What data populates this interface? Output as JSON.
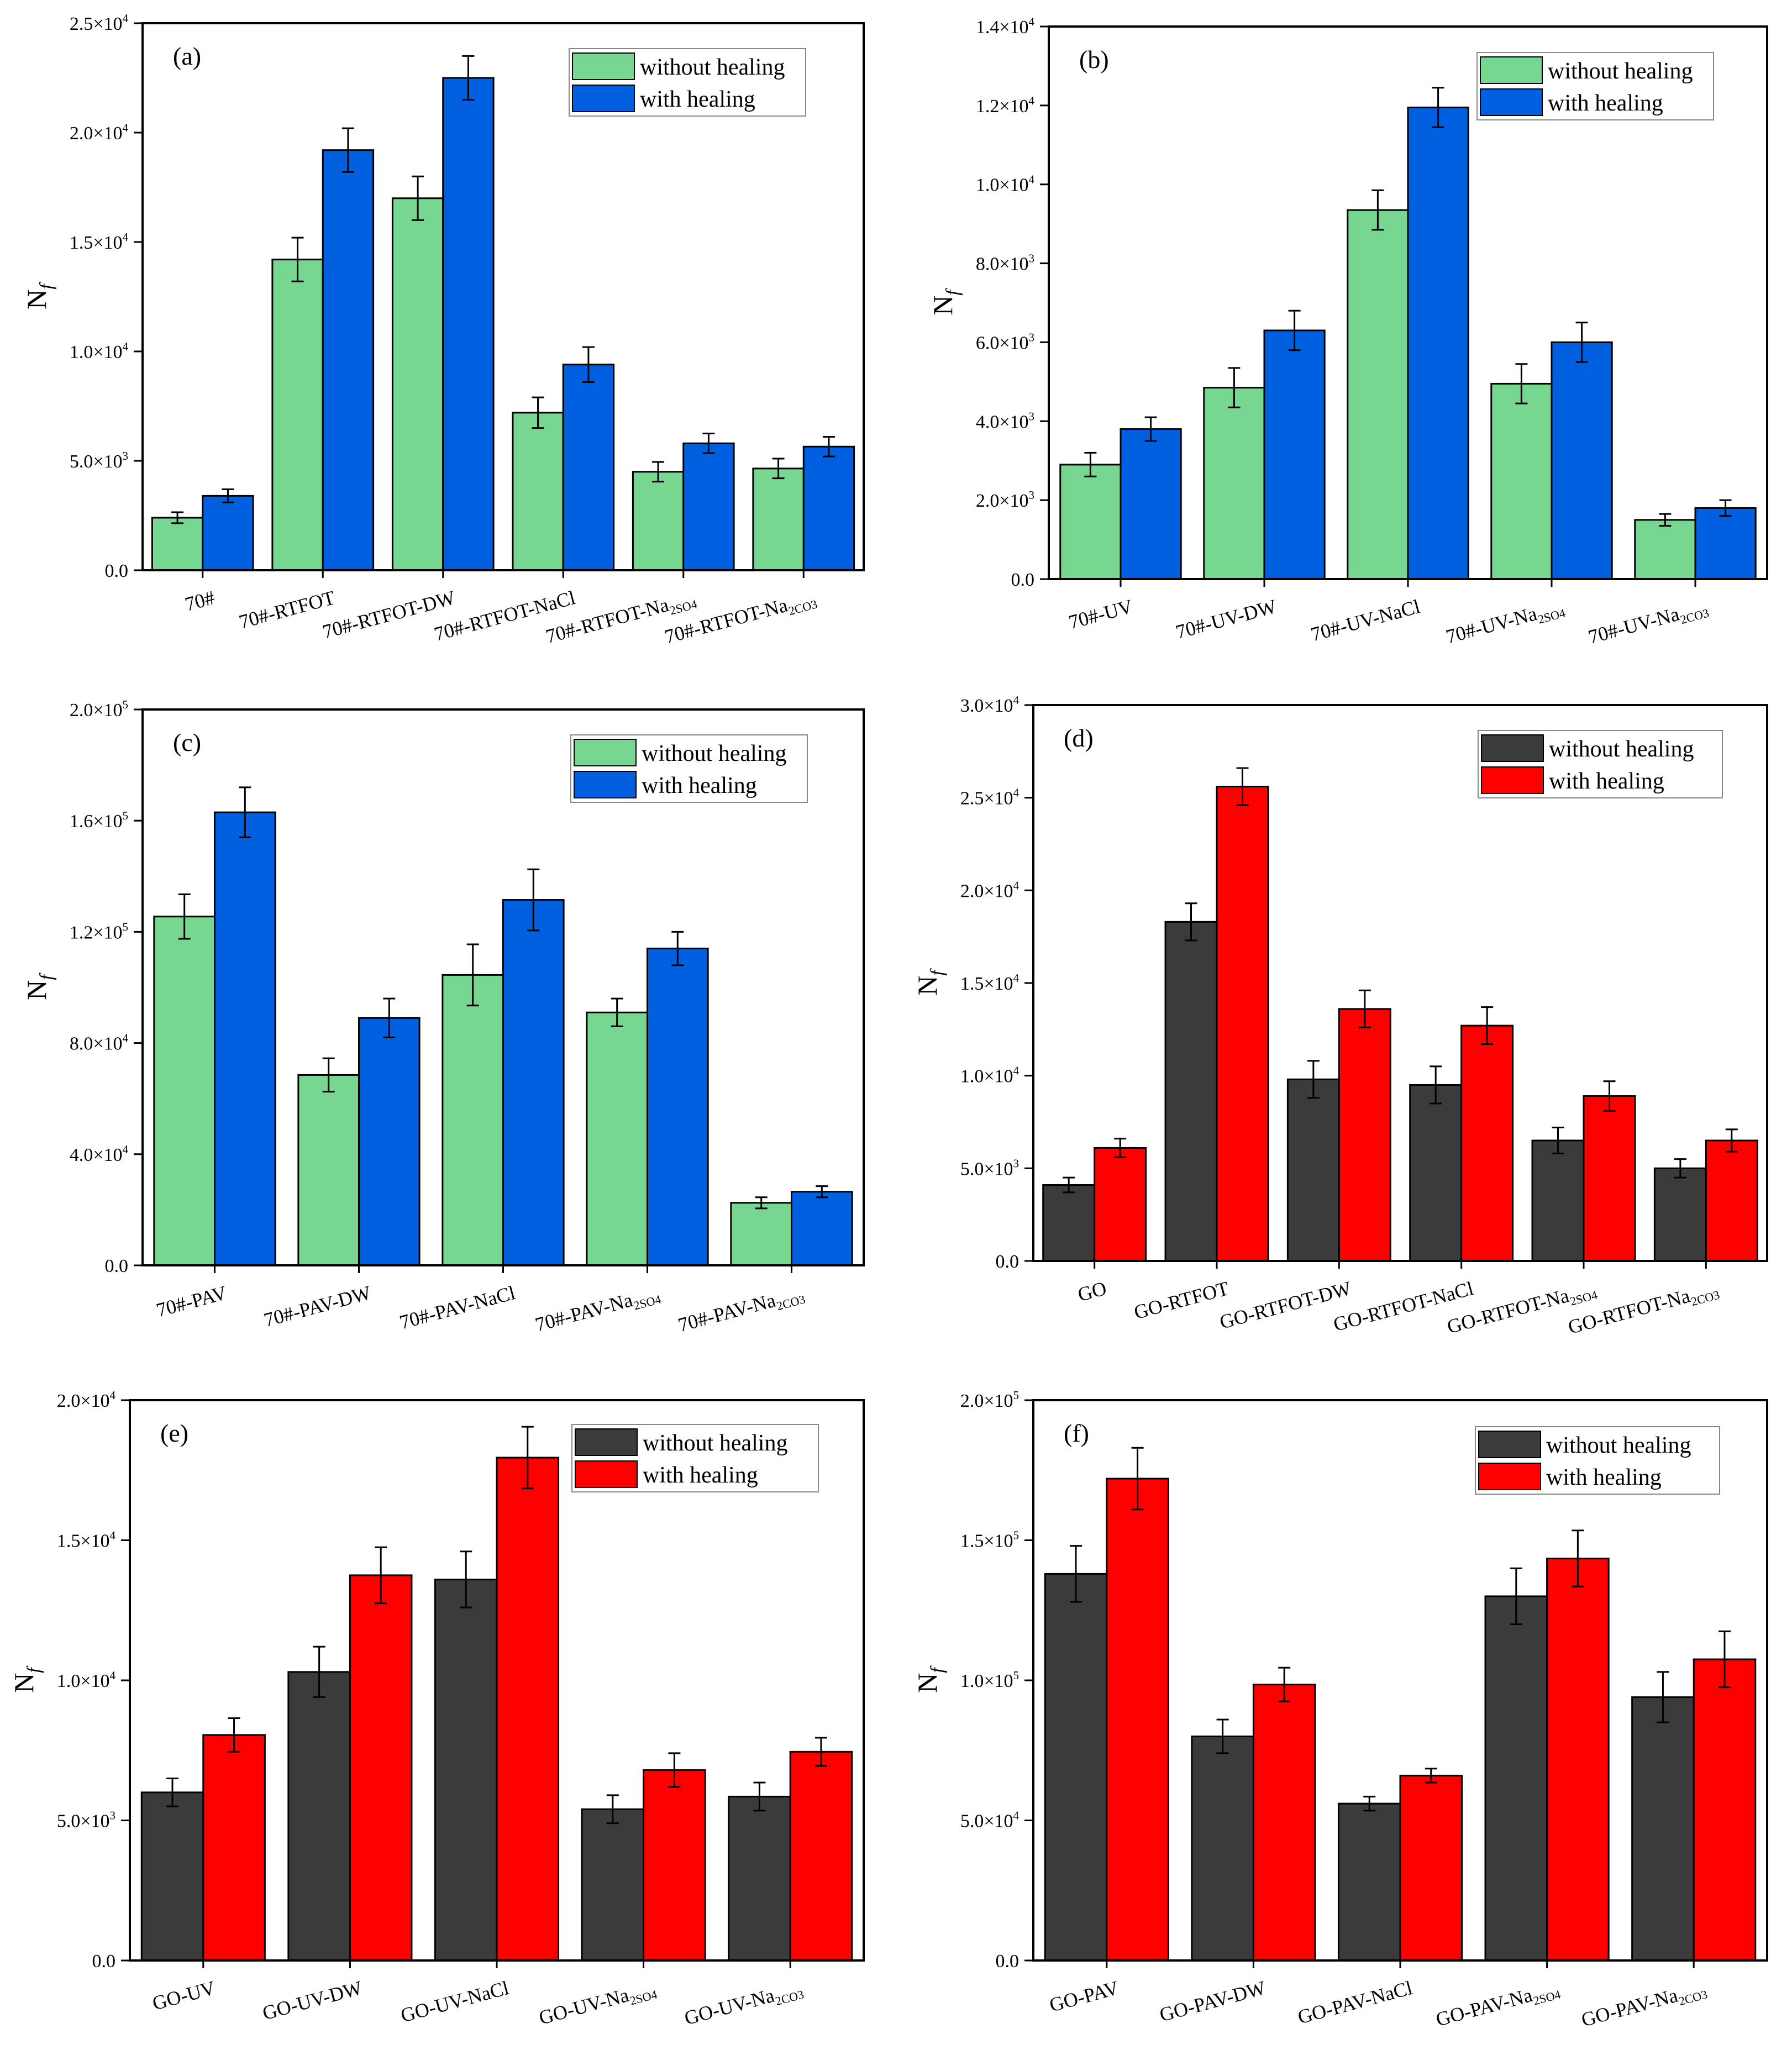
{
  "series_names": [
    "without healing",
    "with healing"
  ],
  "chart_data": [
    {
      "type": "bar",
      "panel_label": "(a)",
      "ylabel": "N_f",
      "ylim": [
        0,
        25000
      ],
      "yticks": [
        0,
        5000,
        10000,
        15000,
        20000,
        25000
      ],
      "ytick_labels": [
        "0.0",
        "5.0×10^3",
        "1.0×10^4",
        "1.5×10^4",
        "2.0×10^4",
        "2.5×10^4"
      ],
      "categories": [
        "70#",
        "70#-RTFOT",
        "70#-RTFOT-DW",
        "70#-RTFOT-NaCl",
        "70#-RTFOT-Na_2SO_4",
        "70#-RTFOT-Na_2CO_3"
      ],
      "colors": [
        "#77d690",
        "#0060e0"
      ],
      "legend": "top-right",
      "series": [
        {
          "name": "without healing",
          "values": [
            2400,
            14200,
            17000,
            7200,
            4500,
            4650
          ],
          "errors": [
            250,
            1000,
            1000,
            700,
            450,
            450
          ]
        },
        {
          "name": "with healing",
          "values": [
            3400,
            19200,
            22500,
            9400,
            5800,
            5650
          ],
          "errors": [
            300,
            1000,
            1000,
            800,
            450,
            450
          ]
        }
      ]
    },
    {
      "type": "bar",
      "panel_label": "(b)",
      "ylabel": "N_f",
      "ylim": [
        0,
        14000
      ],
      "yticks": [
        0,
        2000,
        4000,
        6000,
        8000,
        10000,
        12000,
        14000
      ],
      "ytick_labels": [
        "0.0",
        "2.0×10^3",
        "4.0×10^3",
        "6.0×10^3",
        "8.0×10^3",
        "1.0×10^4",
        "1.2×10^4",
        "1.4×10^4"
      ],
      "categories": [
        "70#-UV",
        "70#-UV-DW",
        "70#-UV-NaCl",
        "70#-UV-Na_2SO_4",
        "70#-UV-Na_2CO_3"
      ],
      "colors": [
        "#77d690",
        "#0060e0"
      ],
      "legend": "top-right",
      "series": [
        {
          "name": "without healing",
          "values": [
            2900,
            4850,
            9350,
            4950,
            1500
          ],
          "errors": [
            300,
            500,
            500,
            500,
            150
          ]
        },
        {
          "name": "with healing",
          "values": [
            3800,
            6300,
            11950,
            6000,
            1800
          ],
          "errors": [
            300,
            500,
            500,
            500,
            200
          ]
        }
      ]
    },
    {
      "type": "bar",
      "panel_label": "(c)",
      "ylabel": "N_f",
      "ylim": [
        0,
        200000
      ],
      "yticks": [
        0,
        40000,
        80000,
        120000,
        160000,
        200000
      ],
      "ytick_labels": [
        "0.0",
        "4.0×10^4",
        "8.0×10^4",
        "1.2×10^5",
        "1.6×10^5",
        "2.0×10^5"
      ],
      "categories": [
        "70#-PAV",
        "70#-PAV-DW",
        "70#-PAV-NaCl",
        "70#-PAV-Na_2SO_4",
        "70#-PAV-Na_2CO_3"
      ],
      "colors": [
        "#77d690",
        "#0060e0"
      ],
      "legend": "top-right",
      "series": [
        {
          "name": "without healing",
          "values": [
            125500,
            68500,
            104500,
            91000,
            22500
          ],
          "errors": [
            8000,
            6000,
            11000,
            5000,
            2000
          ]
        },
        {
          "name": "with healing",
          "values": [
            163000,
            89000,
            131500,
            114000,
            26500
          ],
          "errors": [
            9000,
            7000,
            11000,
            6000,
            2000
          ]
        }
      ]
    },
    {
      "type": "bar",
      "panel_label": "(d)",
      "ylabel": "N_f",
      "ylim": [
        0,
        30000
      ],
      "yticks": [
        0,
        5000,
        10000,
        15000,
        20000,
        25000,
        30000
      ],
      "ytick_labels": [
        "0.0",
        "5.0×10^3",
        "1.0×10^4",
        "1.5×10^4",
        "2.0×10^4",
        "2.5×10^4",
        "3.0×10^4"
      ],
      "categories": [
        "GO",
        "GO-RTFOT",
        "GO-RTFOT-DW",
        "GO-RTFOT-NaCl",
        "GO-RTFOT-Na_2SO_4",
        "GO-RTFOT-Na_2CO_3"
      ],
      "colors": [
        "#3b3b3b",
        "#ff0000"
      ],
      "legend": "top-right",
      "series": [
        {
          "name": "without healing",
          "values": [
            4100,
            18300,
            9800,
            9500,
            6500,
            5000
          ],
          "errors": [
            400,
            1000,
            1000,
            1000,
            700,
            500
          ]
        },
        {
          "name": "with healing",
          "values": [
            6100,
            25600,
            13600,
            12700,
            8900,
            6500
          ],
          "errors": [
            500,
            1000,
            1000,
            1000,
            800,
            600
          ]
        }
      ]
    },
    {
      "type": "bar",
      "panel_label": "(e)",
      "ylabel": "N_f",
      "ylim": [
        0,
        20000
      ],
      "yticks": [
        0,
        5000,
        10000,
        15000,
        20000
      ],
      "ytick_labels": [
        "0.0",
        "5.0×10^3",
        "1.0×10^4",
        "1.5×10^4",
        "2.0×10^4"
      ],
      "categories": [
        "GO-UV",
        "GO-UV-DW",
        "GO-UV-NaCl",
        "GO-UV-Na_2SO_4",
        "GO-UV-Na_2CO_3"
      ],
      "colors": [
        "#3b3b3b",
        "#ff0000"
      ],
      "legend": "top-right",
      "series": [
        {
          "name": "without healing",
          "values": [
            6000,
            10300,
            13600,
            5400,
            5850
          ],
          "errors": [
            500,
            900,
            1000,
            500,
            500
          ]
        },
        {
          "name": "with healing",
          "values": [
            8050,
            13750,
            17950,
            6800,
            7450
          ],
          "errors": [
            600,
            1000,
            1100,
            600,
            500
          ]
        }
      ]
    },
    {
      "type": "bar",
      "panel_label": "(f)",
      "ylabel": "N_f",
      "ylim": [
        0,
        200000
      ],
      "yticks": [
        0,
        50000,
        100000,
        150000,
        200000
      ],
      "ytick_labels": [
        "0.0",
        "5.0×10^4",
        "1.0×10^5",
        "1.5×10^5",
        "2.0×10^5"
      ],
      "categories": [
        "GO-PAV",
        "GO-PAV-DW",
        "GO-PAV-NaCl",
        "GO-PAV-Na_2SO_4",
        "GO-PAV-Na_2CO_3"
      ],
      "colors": [
        "#3b3b3b",
        "#ff0000"
      ],
      "legend": "top-right",
      "series": [
        {
          "name": "without healing",
          "values": [
            138000,
            80000,
            56000,
            130000,
            94000
          ],
          "errors": [
            10000,
            6000,
            2500,
            10000,
            9000
          ]
        },
        {
          "name": "with healing",
          "values": [
            172000,
            98500,
            66000,
            143500,
            107500
          ],
          "errors": [
            11000,
            6000,
            2500,
            10000,
            10000
          ]
        }
      ]
    }
  ]
}
